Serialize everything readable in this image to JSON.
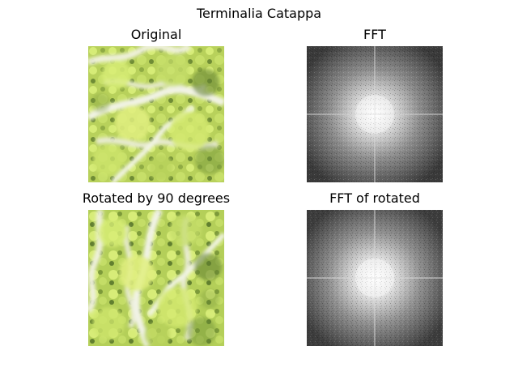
{
  "figure": {
    "title": "Terminalia Catappa"
  },
  "panels": {
    "original": {
      "title": "Original"
    },
    "fft": {
      "title": "FFT"
    },
    "rotated": {
      "title": "Rotated by 90 degrees"
    },
    "fft_rotated": {
      "title": "FFT of rotated"
    }
  },
  "colors": {
    "background": "#ffffff",
    "leaf_light": "#d8ec74",
    "leaf_mid": "#b7d25a",
    "leaf_dark": "#4c6a2a",
    "branch": "#e8ead4",
    "fft_dark": "#2f2f2f",
    "fft_bright": "#ffffff"
  }
}
